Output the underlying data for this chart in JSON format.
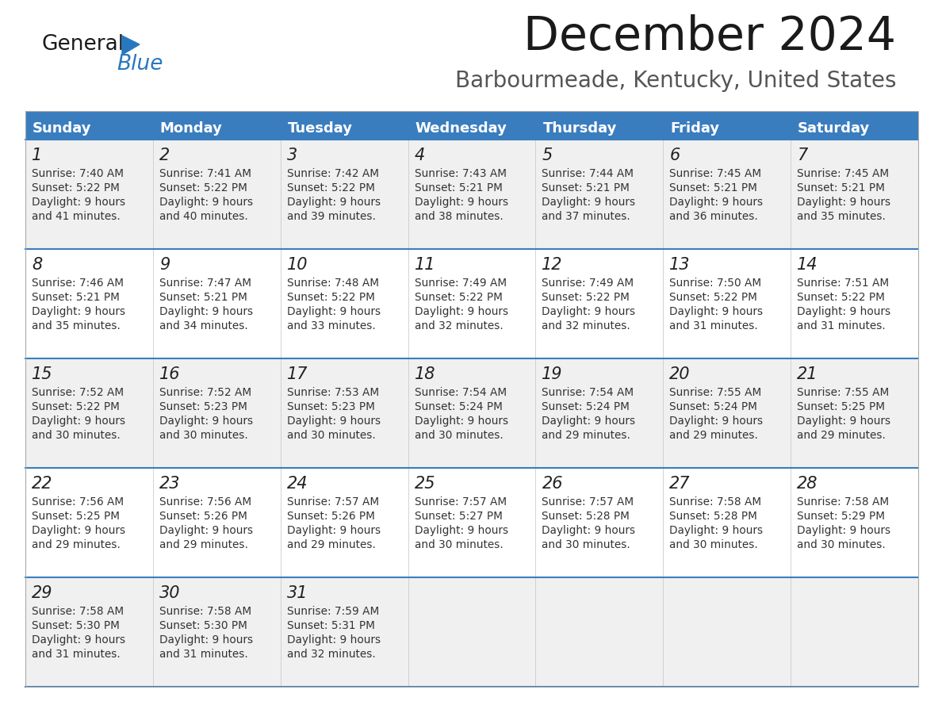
{
  "title": "December 2024",
  "subtitle": "Barbourmeade, Kentucky, United States",
  "header_bg": "#3a7dbf",
  "header_text": "#ffffff",
  "row_bg_odd": "#f0f0f0",
  "row_bg_even": "#ffffff",
  "separator_color": "#3a7dbf",
  "text_color": "#333333",
  "day_headers": [
    "Sunday",
    "Monday",
    "Tuesday",
    "Wednesday",
    "Thursday",
    "Friday",
    "Saturday"
  ],
  "days": [
    {
      "day": 1,
      "col": 0,
      "row": 0,
      "sunrise": "7:40 AM",
      "sunset": "5:22 PM",
      "daylight": "9 hours and 41 minutes."
    },
    {
      "day": 2,
      "col": 1,
      "row": 0,
      "sunrise": "7:41 AM",
      "sunset": "5:22 PM",
      "daylight": "9 hours and 40 minutes."
    },
    {
      "day": 3,
      "col": 2,
      "row": 0,
      "sunrise": "7:42 AM",
      "sunset": "5:22 PM",
      "daylight": "9 hours and 39 minutes."
    },
    {
      "day": 4,
      "col": 3,
      "row": 0,
      "sunrise": "7:43 AM",
      "sunset": "5:21 PM",
      "daylight": "9 hours and 38 minutes."
    },
    {
      "day": 5,
      "col": 4,
      "row": 0,
      "sunrise": "7:44 AM",
      "sunset": "5:21 PM",
      "daylight": "9 hours and 37 minutes."
    },
    {
      "day": 6,
      "col": 5,
      "row": 0,
      "sunrise": "7:45 AM",
      "sunset": "5:21 PM",
      "daylight": "9 hours and 36 minutes."
    },
    {
      "day": 7,
      "col": 6,
      "row": 0,
      "sunrise": "7:45 AM",
      "sunset": "5:21 PM",
      "daylight": "9 hours and 35 minutes."
    },
    {
      "day": 8,
      "col": 0,
      "row": 1,
      "sunrise": "7:46 AM",
      "sunset": "5:21 PM",
      "daylight": "9 hours and 35 minutes."
    },
    {
      "day": 9,
      "col": 1,
      "row": 1,
      "sunrise": "7:47 AM",
      "sunset": "5:21 PM",
      "daylight": "9 hours and 34 minutes."
    },
    {
      "day": 10,
      "col": 2,
      "row": 1,
      "sunrise": "7:48 AM",
      "sunset": "5:22 PM",
      "daylight": "9 hours and 33 minutes."
    },
    {
      "day": 11,
      "col": 3,
      "row": 1,
      "sunrise": "7:49 AM",
      "sunset": "5:22 PM",
      "daylight": "9 hours and 32 minutes."
    },
    {
      "day": 12,
      "col": 4,
      "row": 1,
      "sunrise": "7:49 AM",
      "sunset": "5:22 PM",
      "daylight": "9 hours and 32 minutes."
    },
    {
      "day": 13,
      "col": 5,
      "row": 1,
      "sunrise": "7:50 AM",
      "sunset": "5:22 PM",
      "daylight": "9 hours and 31 minutes."
    },
    {
      "day": 14,
      "col": 6,
      "row": 1,
      "sunrise": "7:51 AM",
      "sunset": "5:22 PM",
      "daylight": "9 hours and 31 minutes."
    },
    {
      "day": 15,
      "col": 0,
      "row": 2,
      "sunrise": "7:52 AM",
      "sunset": "5:22 PM",
      "daylight": "9 hours and 30 minutes."
    },
    {
      "day": 16,
      "col": 1,
      "row": 2,
      "sunrise": "7:52 AM",
      "sunset": "5:23 PM",
      "daylight": "9 hours and 30 minutes."
    },
    {
      "day": 17,
      "col": 2,
      "row": 2,
      "sunrise": "7:53 AM",
      "sunset": "5:23 PM",
      "daylight": "9 hours and 30 minutes."
    },
    {
      "day": 18,
      "col": 3,
      "row": 2,
      "sunrise": "7:54 AM",
      "sunset": "5:24 PM",
      "daylight": "9 hours and 30 minutes."
    },
    {
      "day": 19,
      "col": 4,
      "row": 2,
      "sunrise": "7:54 AM",
      "sunset": "5:24 PM",
      "daylight": "9 hours and 29 minutes."
    },
    {
      "day": 20,
      "col": 5,
      "row": 2,
      "sunrise": "7:55 AM",
      "sunset": "5:24 PM",
      "daylight": "9 hours and 29 minutes."
    },
    {
      "day": 21,
      "col": 6,
      "row": 2,
      "sunrise": "7:55 AM",
      "sunset": "5:25 PM",
      "daylight": "9 hours and 29 minutes."
    },
    {
      "day": 22,
      "col": 0,
      "row": 3,
      "sunrise": "7:56 AM",
      "sunset": "5:25 PM",
      "daylight": "9 hours and 29 minutes."
    },
    {
      "day": 23,
      "col": 1,
      "row": 3,
      "sunrise": "7:56 AM",
      "sunset": "5:26 PM",
      "daylight": "9 hours and 29 minutes."
    },
    {
      "day": 24,
      "col": 2,
      "row": 3,
      "sunrise": "7:57 AM",
      "sunset": "5:26 PM",
      "daylight": "9 hours and 29 minutes."
    },
    {
      "day": 25,
      "col": 3,
      "row": 3,
      "sunrise": "7:57 AM",
      "sunset": "5:27 PM",
      "daylight": "9 hours and 30 minutes."
    },
    {
      "day": 26,
      "col": 4,
      "row": 3,
      "sunrise": "7:57 AM",
      "sunset": "5:28 PM",
      "daylight": "9 hours and 30 minutes."
    },
    {
      "day": 27,
      "col": 5,
      "row": 3,
      "sunrise": "7:58 AM",
      "sunset": "5:28 PM",
      "daylight": "9 hours and 30 minutes."
    },
    {
      "day": 28,
      "col": 6,
      "row": 3,
      "sunrise": "7:58 AM",
      "sunset": "5:29 PM",
      "daylight": "9 hours and 30 minutes."
    },
    {
      "day": 29,
      "col": 0,
      "row": 4,
      "sunrise": "7:58 AM",
      "sunset": "5:30 PM",
      "daylight": "9 hours and 31 minutes."
    },
    {
      "day": 30,
      "col": 1,
      "row": 4,
      "sunrise": "7:58 AM",
      "sunset": "5:30 PM",
      "daylight": "9 hours and 31 minutes."
    },
    {
      "day": 31,
      "col": 2,
      "row": 4,
      "sunrise": "7:59 AM",
      "sunset": "5:31 PM",
      "daylight": "9 hours and 32 minutes."
    }
  ]
}
